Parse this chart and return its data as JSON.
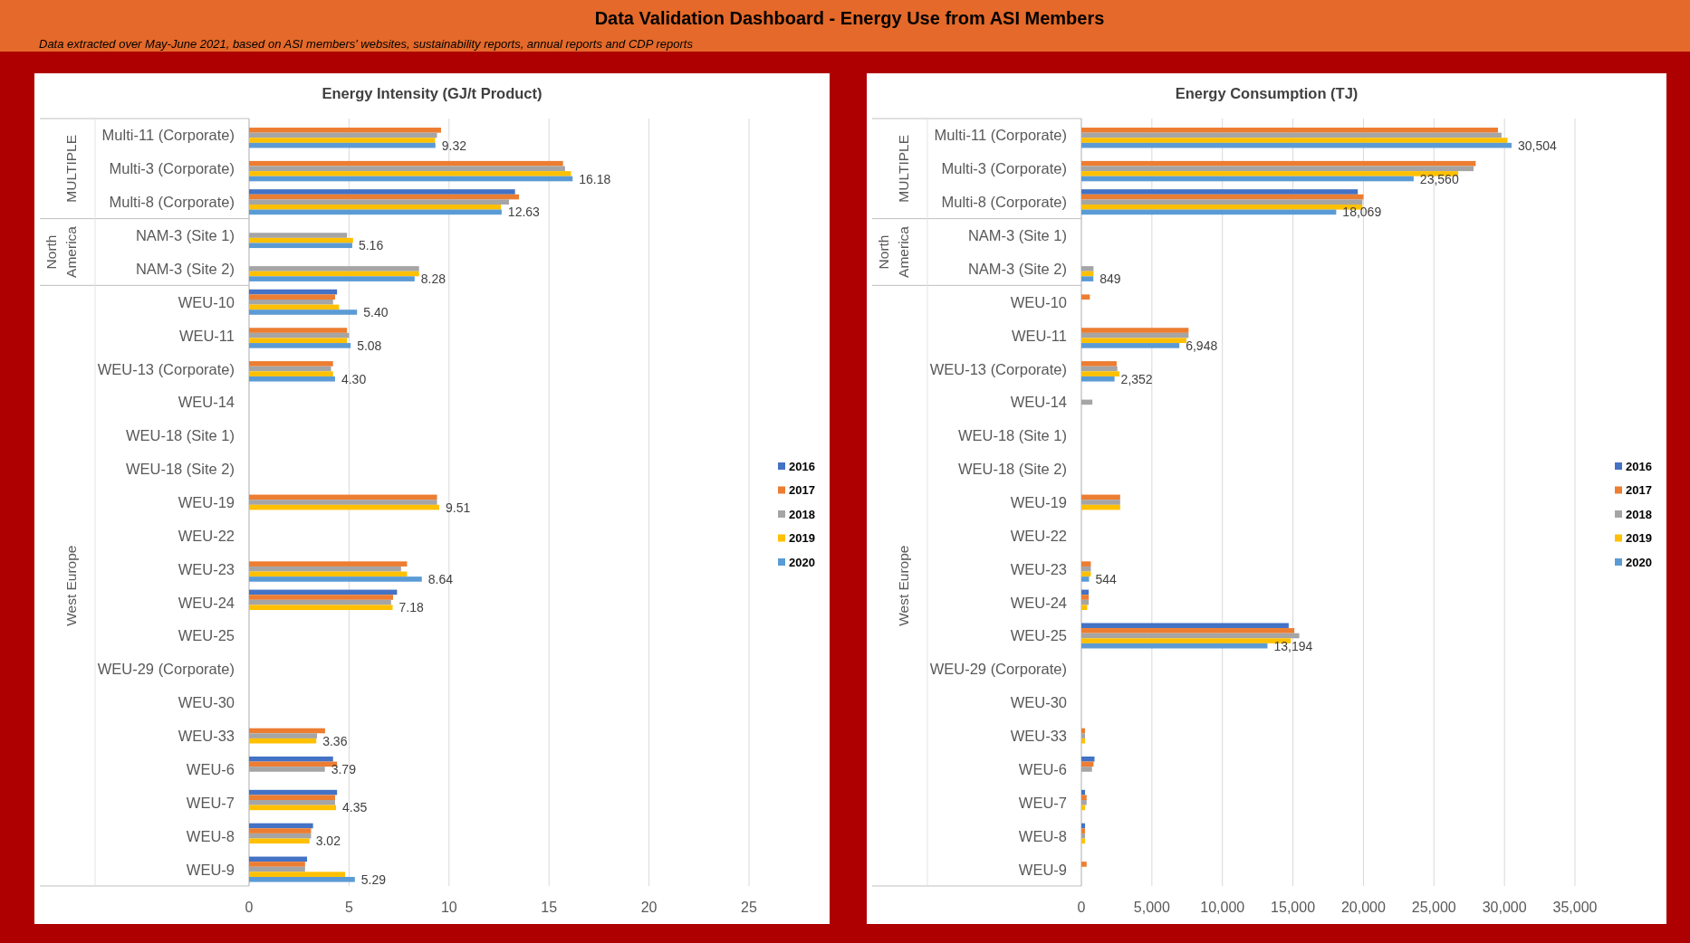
{
  "chart_data": [
    {
      "type": "other",
      "title": "Data Validation Dashboard - Energy Use from ASI Members",
      "subtitle": "Data extracted over May-June 2021, based on ASI members' websites, sustainability reports, annual reports and CDP reports"
    },
    {
      "type": "bar",
      "orientation": "horizontal",
      "title": "Energy Intensity (GJ/t Product)",
      "categories": [
        "Multi-11 (Corporate)",
        "Multi-3 (Corporate)",
        "Multi-8 (Corporate)",
        "NAM-3 (Site 1)",
        "NAM-3 (Site 2)",
        "WEU-10",
        "WEU-11",
        "WEU-13 (Corporate)",
        "WEU-14",
        "WEU-18 (Site 1)",
        "WEU-18 (Site 2)",
        "WEU-19",
        "WEU-22",
        "WEU-23",
        "WEU-24",
        "WEU-25",
        "WEU-29 (Corporate)",
        "WEU-30",
        "WEU-33",
        "WEU-6",
        "WEU-7",
        "WEU-8",
        "WEU-9"
      ],
      "series": [
        {
          "name": "2016",
          "color": "#4472c4",
          "values": [
            null,
            null,
            13.3,
            null,
            null,
            4.4,
            null,
            null,
            null,
            null,
            null,
            null,
            null,
            null,
            7.4,
            null,
            null,
            null,
            null,
            4.2,
            4.4,
            3.2,
            2.9
          ]
        },
        {
          "name": "2017",
          "color": "#ed7d31",
          "values": [
            9.6,
            15.7,
            13.5,
            null,
            null,
            4.3,
            4.9,
            4.2,
            null,
            null,
            null,
            9.4,
            null,
            7.9,
            7.2,
            null,
            null,
            null,
            3.8,
            4.4,
            4.3,
            3.1,
            2.8
          ]
        },
        {
          "name": "2018",
          "color": "#a5a5a5",
          "values": [
            9.4,
            15.8,
            13.0,
            4.9,
            8.5,
            4.2,
            5.0,
            4.1,
            null,
            null,
            null,
            9.4,
            null,
            7.6,
            7.1,
            null,
            null,
            null,
            3.4,
            3.79,
            4.3,
            3.1,
            2.8
          ],
          "value_labels": [
            null,
            null,
            null,
            null,
            null,
            null,
            null,
            null,
            null,
            null,
            null,
            null,
            null,
            null,
            null,
            null,
            null,
            null,
            null,
            "3.79",
            null,
            null,
            null
          ]
        },
        {
          "name": "2019",
          "color": "#ffc000",
          "values": [
            9.3,
            16.1,
            12.6,
            5.2,
            8.5,
            4.5,
            4.9,
            4.2,
            null,
            null,
            null,
            9.51,
            null,
            7.9,
            7.18,
            null,
            null,
            null,
            3.36,
            null,
            4.35,
            3.02,
            4.8
          ],
          "value_labels": [
            null,
            null,
            null,
            null,
            null,
            null,
            null,
            null,
            null,
            null,
            null,
            "9.51",
            null,
            null,
            "7.18",
            null,
            null,
            null,
            "3.36",
            null,
            "4.35",
            "3.02",
            null
          ]
        },
        {
          "name": "2020",
          "color": "#5b9bd5",
          "values": [
            9.32,
            16.18,
            12.63,
            5.16,
            8.28,
            5.4,
            5.08,
            4.3,
            null,
            null,
            null,
            null,
            null,
            8.64,
            null,
            null,
            null,
            null,
            null,
            null,
            null,
            null,
            5.29
          ],
          "value_labels": [
            "9.32",
            "16.18",
            "12.63",
            "5.16",
            "8.28",
            "5.40",
            "5.08",
            "4.30",
            null,
            null,
            null,
            null,
            null,
            "8.64",
            null,
            null,
            null,
            null,
            null,
            null,
            null,
            null,
            "5.29"
          ]
        }
      ],
      "xlim": [
        0,
        25
      ],
      "xticks": [
        0,
        5,
        10,
        15,
        20,
        25
      ],
      "grid": "x",
      "legend": "right",
      "annotations": [
        "MULTIPLE",
        "North America",
        "West Europe"
      ]
    },
    {
      "type": "bar",
      "orientation": "horizontal",
      "title": "Energy Consumption (TJ)",
      "categories": [
        "Multi-11 (Corporate)",
        "Multi-3 (Corporate)",
        "Multi-8 (Corporate)",
        "NAM-3 (Site 1)",
        "NAM-3 (Site 2)",
        "WEU-10",
        "WEU-11",
        "WEU-13 (Corporate)",
        "WEU-14",
        "WEU-18 (Site 1)",
        "WEU-18 (Site 2)",
        "WEU-19",
        "WEU-22",
        "WEU-23",
        "WEU-24",
        "WEU-25",
        "WEU-29 (Corporate)",
        "WEU-30",
        "WEU-33",
        "WEU-6",
        "WEU-7",
        "WEU-8",
        "WEU-9"
      ],
      "series": [
        {
          "name": "2016",
          "color": "#4472c4",
          "values": [
            null,
            null,
            19600,
            null,
            null,
            null,
            null,
            null,
            null,
            null,
            null,
            null,
            null,
            null,
            520,
            14700,
            null,
            null,
            null,
            930,
            260,
            260,
            null
          ]
        },
        {
          "name": "2017",
          "color": "#ed7d31",
          "values": [
            29540,
            27960,
            20000,
            null,
            null,
            600,
            7600,
            2500,
            null,
            null,
            null,
            2750,
            null,
            670,
            520,
            15100,
            null,
            null,
            260,
            860,
            370,
            260,
            370
          ]
        },
        {
          "name": "2018",
          "color": "#a5a5a5",
          "values": [
            29790,
            27810,
            19930,
            null,
            860,
            null,
            7600,
            2550,
            780,
            null,
            null,
            2750,
            null,
            670,
            520,
            15450,
            null,
            null,
            260,
            750,
            370,
            260,
            null
          ]
        },
        {
          "name": "2019",
          "color": "#ffc000",
          "values": [
            30210,
            26720,
            19930,
            null,
            860,
            null,
            7450,
            2700,
            null,
            null,
            null,
            2750,
            null,
            670,
            410,
            14850,
            null,
            null,
            260,
            null,
            260,
            260,
            null
          ]
        },
        {
          "name": "2020",
          "color": "#5b9bd5",
          "values": [
            30504,
            23560,
            18069,
            null,
            849,
            null,
            6948,
            2352,
            null,
            null,
            null,
            null,
            null,
            544,
            null,
            13194,
            null,
            null,
            null,
            null,
            null,
            null,
            null
          ],
          "value_labels": [
            "30,504",
            "23,560",
            "18,069",
            null,
            "849",
            null,
            "6,948",
            "2,352",
            null,
            null,
            null,
            null,
            null,
            "544",
            null,
            "13,194",
            null,
            null,
            null,
            null,
            null,
            null,
            null
          ]
        }
      ],
      "xlim": [
        0,
        35000
      ],
      "xticks": [
        0,
        {
          "value": 5000,
          "label": "5,000"
        },
        {
          "value": 10000,
          "label": "10,000"
        },
        {
          "value": 15000,
          "label": "15,000"
        },
        {
          "value": 20000,
          "label": "20,000"
        },
        {
          "value": 25000,
          "label": "25,000"
        },
        {
          "value": 30000,
          "label": "30,000"
        },
        {
          "value": 35000,
          "label": "35,000"
        }
      ],
      "grid": "x",
      "legend": "right",
      "annotations": [
        "MULTIPLE",
        "North America",
        "West Europe"
      ]
    }
  ]
}
